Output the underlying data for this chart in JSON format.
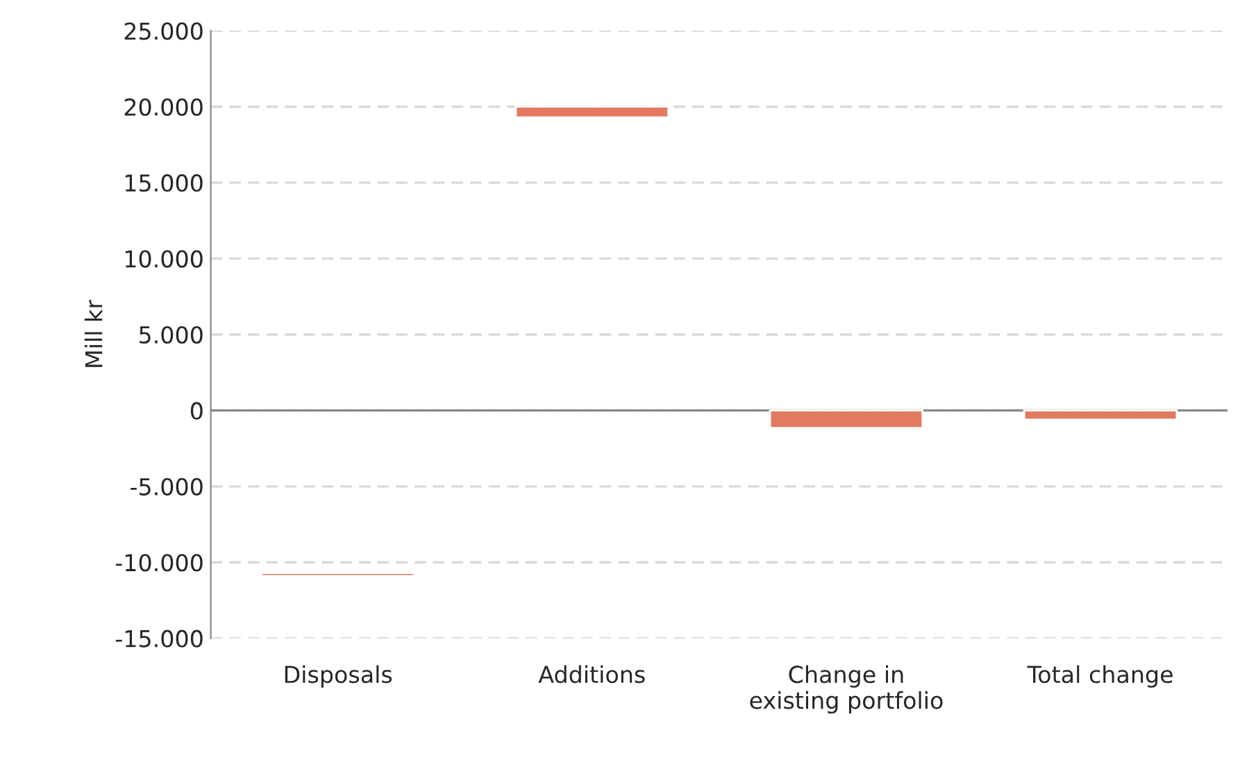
{
  "chart_data": {
    "type": "bar",
    "ylabel": "Mill kr",
    "categories": [
      "Disposals",
      "Additions",
      "Change in\nexisting portfolio",
      "Total change"
    ],
    "base": [
      -10900,
      19300,
      0,
      0
    ],
    "values": [
      200,
      700,
      -1150,
      -600
    ],
    "color": "#e27a5f",
    "ylim": [
      -15000,
      25000
    ],
    "yticks": [
      {
        "value": -15000,
        "label": "-15.000"
      },
      {
        "value": -10000,
        "label": "-10.000"
      },
      {
        "value": -5000,
        "label": "-5.000"
      },
      {
        "value": 0,
        "label": "0"
      },
      {
        "value": 5000,
        "label": "5.000"
      },
      {
        "value": 10000,
        "label": "10.000"
      },
      {
        "value": 15000,
        "label": "15.000"
      },
      {
        "value": 20000,
        "label": "20.000"
      },
      {
        "value": 25000,
        "label": "25.000"
      }
    ],
    "grid": "y"
  }
}
